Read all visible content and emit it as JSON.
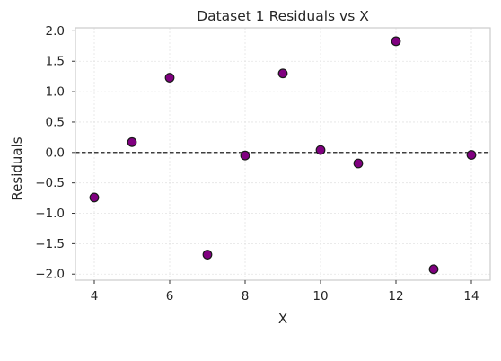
{
  "chart_data": {
    "type": "scatter",
    "title": "Dataset 1 Residuals vs X",
    "xlabel": "X",
    "ylabel": "Residuals",
    "x": [
      4,
      5,
      6,
      7,
      8,
      9,
      10,
      11,
      12,
      13,
      14
    ],
    "y": [
      -0.74,
      0.17,
      1.23,
      -1.68,
      -0.05,
      1.3,
      0.04,
      -0.18,
      1.83,
      -1.92,
      -0.04
    ],
    "xlim": [
      3.5,
      14.5
    ],
    "ylim": [
      -2.1,
      2.05
    ],
    "xticks": [
      4,
      6,
      8,
      10,
      12,
      14
    ],
    "yticks": [
      -2.0,
      -1.5,
      -1.0,
      -0.5,
      0.0,
      0.5,
      1.0,
      1.5,
      2.0
    ],
    "ytick_labels": [
      "−2.0",
      "−1.5",
      "−1.0",
      "−0.5",
      "0.0",
      "0.5",
      "1.0",
      "1.5",
      "2.0"
    ],
    "reference_line_y": 0,
    "grid": true,
    "marker_color": "#800080",
    "marker_edge_color": "#1a1a1a",
    "reference_line_color": "#000000"
  }
}
